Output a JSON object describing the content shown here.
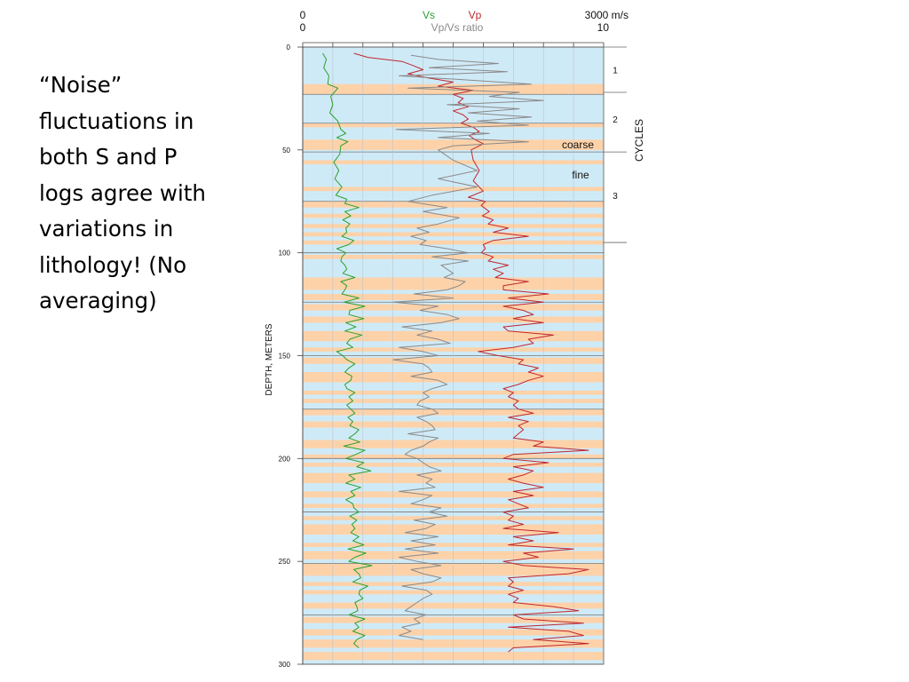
{
  "slide": {
    "text_lines": [
      "“Noise”",
      "fluctuations in",
      "both S and P",
      "logs agree with",
      "variations in",
      "lithology! (No",
      "averaging)"
    ]
  },
  "chart_data": {
    "type": "line",
    "x_axis_velocity": {
      "min_label": "0",
      "max_label": "3000 m/s",
      "range": [
        0,
        3000
      ]
    },
    "x_axis_ratio": {
      "min_label": "0",
      "max_label": "10",
      "title": "Vp/Vs ratio",
      "range": [
        0,
        10
      ]
    },
    "ylabel": "DEPTH, METERS",
    "ylim": [
      0,
      300
    ],
    "y_ticks": [
      "0",
      "50",
      "100",
      "150",
      "200",
      "250",
      "300"
    ],
    "colors": {
      "vs": "#2ca02c",
      "vp": "#c0272d",
      "ratio": "#8a8a8a",
      "fine": "#cfeaf7",
      "coarse": "#fdd2a9",
      "grid": "#777777"
    },
    "legend": {
      "vs": "Vs",
      "vp": "Vp"
    },
    "annotations": {
      "coarse": "coarse",
      "fine": "fine"
    },
    "cycles": {
      "title": "CYCLES",
      "labels": [
        "1",
        "2",
        "3"
      ],
      "label_depths": [
        11,
        35,
        72
      ],
      "boundaries": [
        22,
        51,
        95
      ]
    },
    "coarse_intervals": [
      [
        18,
        23
      ],
      [
        37,
        39
      ],
      [
        45,
        50
      ],
      [
        55,
        57
      ],
      [
        68,
        70
      ],
      [
        75,
        78
      ],
      [
        81,
        83
      ],
      [
        86,
        88
      ],
      [
        90,
        92
      ],
      [
        94,
        96
      ],
      [
        101,
        103
      ],
      [
        112,
        118
      ],
      [
        120,
        123
      ],
      [
        125,
        128
      ],
      [
        131,
        134
      ],
      [
        138,
        143
      ],
      [
        146,
        148
      ],
      [
        151,
        154
      ],
      [
        158,
        163
      ],
      [
        167,
        169
      ],
      [
        171,
        173
      ],
      [
        176,
        179
      ],
      [
        182,
        185
      ],
      [
        191,
        195
      ],
      [
        198,
        200
      ],
      [
        202,
        204
      ],
      [
        207,
        212
      ],
      [
        216,
        219
      ],
      [
        222,
        224
      ],
      [
        228,
        230
      ],
      [
        232,
        237
      ],
      [
        241,
        243
      ],
      [
        245,
        249
      ],
      [
        251,
        257
      ],
      [
        260,
        262
      ],
      [
        264,
        266
      ],
      [
        270,
        273
      ],
      [
        277,
        280
      ],
      [
        283,
        286
      ],
      [
        288,
        292
      ],
      [
        294,
        298
      ]
    ],
    "gridlines": [
      0,
      23,
      37,
      51,
      75,
      100,
      124,
      150,
      176,
      200,
      226,
      251,
      276,
      300
    ],
    "series": [
      {
        "name": "Vs",
        "axis": "velocity",
        "color": "#2ca02c",
        "depth": [
          3,
          6,
          10,
          14,
          18,
          20,
          24,
          28,
          32,
          36,
          40,
          42,
          44,
          46,
          48,
          52,
          56,
          60,
          64,
          68,
          72,
          74,
          76,
          78,
          80,
          82,
          84,
          86,
          88,
          90,
          92,
          94,
          96,
          98,
          100,
          102,
          104,
          106,
          108,
          110,
          112,
          114,
          116,
          118,
          120,
          122,
          124,
          126,
          128,
          130,
          132,
          134,
          136,
          138,
          140,
          142,
          144,
          146,
          148,
          150,
          152,
          154,
          156,
          158,
          160,
          162,
          164,
          166,
          168,
          170,
          172,
          174,
          176,
          178,
          180,
          182,
          184,
          186,
          188,
          190,
          192,
          194,
          196,
          198,
          200,
          202,
          204,
          206,
          208,
          210,
          212,
          214,
          216,
          218,
          220,
          222,
          224,
          226,
          228,
          230,
          232,
          234,
          236,
          238,
          240,
          242,
          244,
          246,
          248,
          250,
          252,
          254,
          256,
          258,
          260,
          262,
          264,
          266,
          268,
          270,
          272,
          274,
          276,
          278,
          280,
          282,
          284,
          286,
          288,
          290,
          292
        ],
        "values": [
          200,
          235,
          210,
          260,
          250,
          350,
          280,
          300,
          270,
          350,
          380,
          430,
          340,
          450,
          380,
          370,
          310,
          360,
          320,
          390,
          330,
          440,
          420,
          560,
          420,
          480,
          400,
          470,
          430,
          440,
          390,
          510,
          460,
          340,
          430,
          390,
          380,
          420,
          440,
          400,
          520,
          380,
          440,
          420,
          390,
          560,
          410,
          620,
          470,
          460,
          610,
          430,
          530,
          420,
          590,
          470,
          440,
          500,
          340,
          400,
          440,
          520,
          460,
          420,
          490,
          480,
          420,
          440,
          520,
          460,
          500,
          440,
          480,
          520,
          450,
          500,
          470,
          560,
          520,
          460,
          570,
          410,
          620,
          530,
          430,
          610,
          540,
          680,
          460,
          520,
          430,
          580,
          480,
          520,
          430,
          500,
          510,
          560,
          470,
          540,
          490,
          520,
          480,
          560,
          500,
          610,
          450,
          630,
          520,
          460,
          690,
          510,
          560,
          580,
          500,
          650,
          570,
          560,
          600,
          520,
          540,
          550,
          460,
          620,
          520,
          560,
          500,
          620,
          540,
          510,
          560
        ]
      },
      {
        "name": "Vp",
        "axis": "velocity",
        "color": "#c0272d",
        "depth": [
          3,
          5,
          7,
          9,
          11,
          13,
          15,
          17,
          19,
          21,
          23,
          25,
          27,
          29,
          31,
          33,
          35,
          37,
          39,
          41,
          43,
          45,
          47,
          50,
          55,
          60,
          65,
          70,
          73,
          75,
          77,
          80,
          82,
          84,
          86,
          88,
          90,
          92,
          94,
          96,
          98,
          100,
          102,
          104,
          106,
          108,
          110,
          112,
          114,
          116,
          118,
          120,
          122,
          124,
          126,
          128,
          130,
          132,
          134,
          136,
          138,
          140,
          142,
          144,
          146,
          148,
          150,
          152,
          154,
          156,
          158,
          160,
          162,
          164,
          166,
          168,
          170,
          172,
          174,
          176,
          178,
          180,
          182,
          184,
          186,
          188,
          190,
          192,
          194,
          196,
          198,
          200,
          202,
          204,
          206,
          208,
          210,
          212,
          214,
          216,
          218,
          220,
          222,
          224,
          226,
          228,
          230,
          232,
          234,
          236,
          238,
          240,
          242,
          244,
          246,
          248,
          250,
          252,
          254,
          256,
          258,
          260,
          262,
          264,
          266,
          268,
          270,
          272,
          274,
          276,
          278,
          280,
          282,
          284,
          286,
          288,
          290,
          292,
          294
        ],
        "values": [
          510,
          650,
          990,
          1100,
          1200,
          1050,
          1250,
          1500,
          1350,
          1700,
          1500,
          1600,
          1550,
          1650,
          1500,
          1600,
          1650,
          1580,
          1700,
          1760,
          1660,
          1720,
          1800,
          1680,
          1700,
          1760,
          1700,
          1800,
          1650,
          1820,
          1780,
          1860,
          1790,
          1900,
          1850,
          2050,
          1900,
          2250,
          1900,
          1800,
          1820,
          1780,
          1900,
          1850,
          2050,
          1900,
          2000,
          1920,
          2250,
          2000,
          2000,
          2450,
          2050,
          2400,
          2000,
          2200,
          2300,
          2100,
          2400,
          2000,
          2050,
          2500,
          2250,
          2300,
          2100,
          1750,
          1950,
          2200,
          2150,
          2350,
          2250,
          2400,
          2250,
          2150,
          2000,
          2100,
          2050,
          2150,
          2100,
          2150,
          2300,
          2050,
          2250,
          2150,
          2200,
          2150,
          2100,
          2400,
          2300,
          2850,
          2100,
          2000,
          2450,
          2100,
          2300,
          2200,
          2050,
          2200,
          2400,
          2100,
          2300,
          2050,
          2150,
          2250,
          2000,
          2100,
          2050,
          2200,
          2000,
          2550,
          2100,
          2300,
          2050,
          2700,
          2200,
          2350,
          2000,
          2200,
          2850,
          2650,
          2050,
          2100,
          2050,
          2200,
          2050,
          2150,
          2100,
          2500,
          2750,
          2100,
          2200,
          2800,
          2050,
          2650,
          2800,
          2300,
          2850,
          2100,
          2050
        ]
      },
      {
        "name": "Vp/Vs ratio",
        "axis": "ratio",
        "color": "#8a8a8a",
        "depth": [
          4,
          6,
          8,
          10,
          12,
          14,
          16,
          18,
          20,
          22,
          24,
          26,
          28,
          30,
          32,
          34,
          36,
          38,
          40,
          42,
          44,
          46,
          48,
          50,
          55,
          60,
          64,
          68,
          72,
          75,
          78,
          80,
          83,
          86,
          88,
          90,
          92,
          94,
          96,
          98,
          100,
          102,
          104,
          106,
          108,
          110,
          112,
          114,
          116,
          118,
          120,
          122,
          124,
          126,
          128,
          130,
          132,
          134,
          136,
          138,
          140,
          142,
          144,
          146,
          148,
          150,
          152,
          154,
          156,
          158,
          160,
          162,
          164,
          166,
          168,
          170,
          172,
          174,
          176,
          178,
          180,
          182,
          184,
          186,
          188,
          190,
          192,
          194,
          196,
          198,
          200,
          202,
          204,
          206,
          208,
          210,
          212,
          214,
          216,
          218,
          220,
          222,
          224,
          226,
          228,
          230,
          232,
          234,
          236,
          238,
          240,
          242,
          244,
          246,
          248,
          250,
          252,
          254,
          256,
          258,
          260,
          262,
          264,
          266,
          268,
          270,
          272,
          274,
          276,
          278,
          280,
          282,
          284,
          286,
          288,
          290
        ],
        "values": [
          3.6,
          4.5,
          6.5,
          4.2,
          6.8,
          3.2,
          5.5,
          7.6,
          3.5,
          7.2,
          6.2,
          8.0,
          4.8,
          7.2,
          5.5,
          7.6,
          5.8,
          7.5,
          3.1,
          6.2,
          4.5,
          7.5,
          5.0,
          4.5,
          5.0,
          5.8,
          4.5,
          5.8,
          4.3,
          3.5,
          4.8,
          4.0,
          5.2,
          4.5,
          3.8,
          4.2,
          3.6,
          4.1,
          3.9,
          4.8,
          5.5,
          4.3,
          5.5,
          4.6,
          4.8,
          5.0,
          4.7,
          5.4,
          5.2,
          4.8,
          3.7,
          5.0,
          3.0,
          4.5,
          3.9,
          4.8,
          5.2,
          4.6,
          3.3,
          4.3,
          3.8,
          4.5,
          4.9,
          3.2,
          4.0,
          4.5,
          3.0,
          4.0,
          4.2,
          4.3,
          3.6,
          4.5,
          4.8,
          4.3,
          4.0,
          4.2,
          3.9,
          3.8,
          4.3,
          4.5,
          3.8,
          4.1,
          4.3,
          4.4,
          3.5,
          4.5,
          4.2,
          4.0,
          3.6,
          3.4,
          3.8,
          4.0,
          4.2,
          4.6,
          3.8,
          4.3,
          4.1,
          4.4,
          3.2,
          4.3,
          4.0,
          3.6,
          4.6,
          4.2,
          4.8,
          3.7,
          4.4,
          4.1,
          3.4,
          4.5,
          3.6,
          4.4,
          3.4,
          4.5,
          3.2,
          3.8,
          4.6,
          3.6,
          4.0,
          4.6,
          4.3,
          3.3,
          4.1,
          4.3,
          4.0,
          3.8,
          3.6,
          3.4,
          4.1,
          3.7,
          3.9,
          3.3,
          3.6,
          3.2,
          4.0
        ]
      }
    ]
  }
}
